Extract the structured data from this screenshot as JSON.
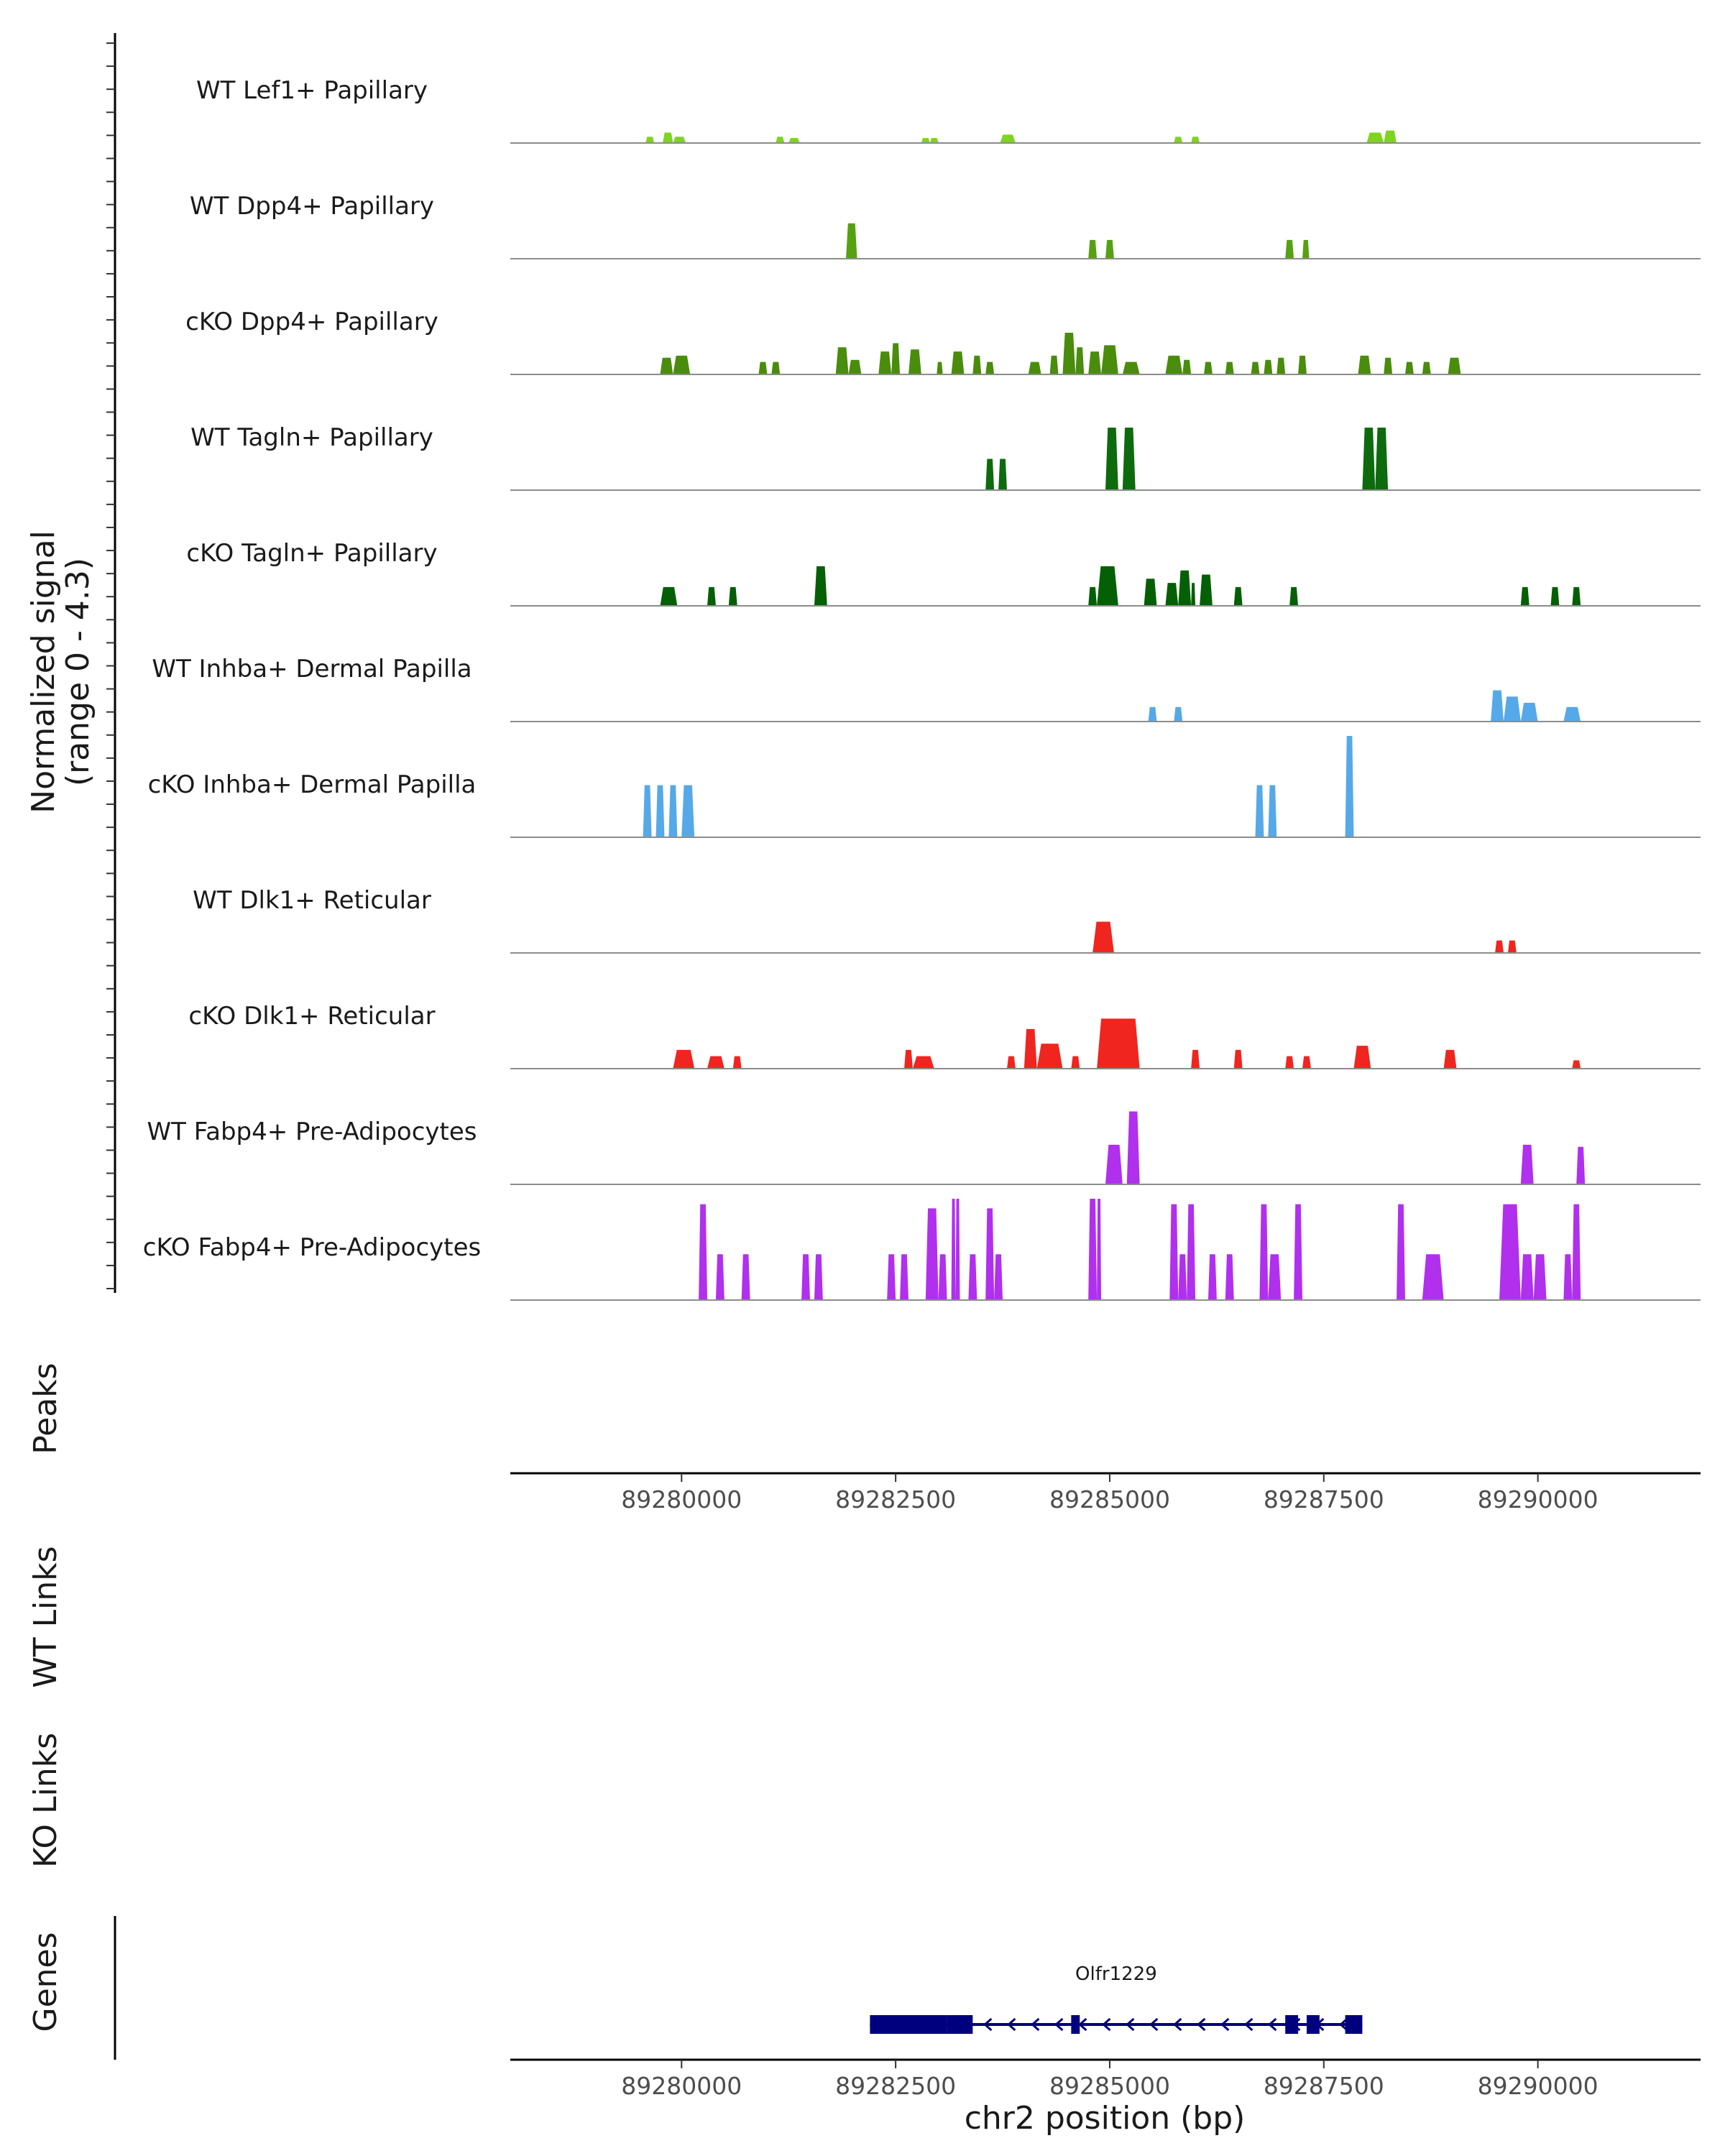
{
  "chart_data": {
    "type": "area",
    "title": "",
    "chromosome": "chr2",
    "xlabel": "chr2 position (bp)",
    "xlim": [
      89278000,
      89291900
    ],
    "x_ticks": [
      89280000,
      89282500,
      89285000,
      89287500,
      89290000
    ],
    "x_tick_labels": [
      "89280000",
      "89282500",
      "89285000",
      "89287500",
      "89290000"
    ],
    "ylabel": "Normalized signal",
    "ylabel_range": "(range 0 - 4.3)",
    "ylim": [
      0,
      4.3
    ],
    "section_labels": {
      "peaks": "Peaks",
      "wt_links": "WT Links",
      "ko_links": "KO Links",
      "genes": "Genes"
    },
    "tracks": [
      {
        "name": "WT Lef1+ Papillary",
        "color": "#7fd321",
        "peaks": [
          [
            89279580,
            89279680,
            0.15
          ],
          [
            89279780,
            89279900,
            0.25
          ],
          [
            89279900,
            89280050,
            0.15
          ],
          [
            89281100,
            89281200,
            0.15
          ],
          [
            89281250,
            89281380,
            0.12
          ],
          [
            89282800,
            89282900,
            0.12
          ],
          [
            89282900,
            89283000,
            0.12
          ],
          [
            89283720,
            89283900,
            0.2
          ],
          [
            89285750,
            89285850,
            0.15
          ],
          [
            89285950,
            89286050,
            0.15
          ],
          [
            89288000,
            89288200,
            0.25
          ],
          [
            89288200,
            89288350,
            0.3
          ]
        ]
      },
      {
        "name": "WT Dpp4+ Papillary",
        "color": "#56a112",
        "peaks": [
          [
            89281920,
            89282050,
            0.85
          ],
          [
            89284750,
            89284850,
            0.45
          ],
          [
            89284950,
            89285050,
            0.45
          ],
          [
            89287050,
            89287150,
            0.45
          ],
          [
            89287250,
            89287330,
            0.45
          ]
        ]
      },
      {
        "name": "cKO Dpp4+ Papillary",
        "color": "#4a8c0c",
        "peaks": [
          [
            89279750,
            89279900,
            0.4
          ],
          [
            89279900,
            89280100,
            0.45
          ],
          [
            89280900,
            89281000,
            0.3
          ],
          [
            89281050,
            89281150,
            0.3
          ],
          [
            89281800,
            89281950,
            0.65
          ],
          [
            89281950,
            89282100,
            0.35
          ],
          [
            89282300,
            89282450,
            0.55
          ],
          [
            89282450,
            89282550,
            0.75
          ],
          [
            89282650,
            89282800,
            0.6
          ],
          [
            89282980,
            89283050,
            0.3
          ],
          [
            89283150,
            89283300,
            0.55
          ],
          [
            89283400,
            89283500,
            0.45
          ],
          [
            89283550,
            89283650,
            0.3
          ],
          [
            89284050,
            89284200,
            0.3
          ],
          [
            89284300,
            89284400,
            0.45
          ],
          [
            89284450,
            89284600,
            1.0
          ],
          [
            89284600,
            89284700,
            0.65
          ],
          [
            89284750,
            89284900,
            0.55
          ],
          [
            89284900,
            89285100,
            0.7
          ],
          [
            89285150,
            89285350,
            0.3
          ],
          [
            89285650,
            89285850,
            0.45
          ],
          [
            89285850,
            89285950,
            0.35
          ],
          [
            89286100,
            89286200,
            0.3
          ],
          [
            89286350,
            89286450,
            0.3
          ],
          [
            89286650,
            89286750,
            0.3
          ],
          [
            89286800,
            89286900,
            0.35
          ],
          [
            89286950,
            89287050,
            0.4
          ],
          [
            89287200,
            89287300,
            0.45
          ],
          [
            89287900,
            89288050,
            0.45
          ],
          [
            89288200,
            89288300,
            0.4
          ],
          [
            89288450,
            89288550,
            0.3
          ],
          [
            89288650,
            89288750,
            0.3
          ],
          [
            89288950,
            89289100,
            0.4
          ]
        ]
      },
      {
        "name": "WT Tagln+ Papillary",
        "color": "#0d6b0d",
        "peaks": [
          [
            89283550,
            89283650,
            0.75
          ],
          [
            89283700,
            89283800,
            0.75
          ],
          [
            89284950,
            89285100,
            1.5
          ],
          [
            89285150,
            89285300,
            1.5
          ],
          [
            89287950,
            89288100,
            1.5
          ],
          [
            89288100,
            89288250,
            1.5
          ]
        ]
      },
      {
        "name": "cKO Tagln+ Papillary",
        "color": "#056005",
        "peaks": [
          [
            89279750,
            89279950,
            0.45
          ],
          [
            89280300,
            89280400,
            0.45
          ],
          [
            89280550,
            89280650,
            0.45
          ],
          [
            89281550,
            89281700,
            0.95
          ],
          [
            89284750,
            89284850,
            0.45
          ],
          [
            89284850,
            89285100,
            0.95
          ],
          [
            89285400,
            89285550,
            0.65
          ],
          [
            89285650,
            89285800,
            0.55
          ],
          [
            89285800,
            89285950,
            0.85
          ],
          [
            89285950,
            89286000,
            0.55
          ],
          [
            89286050,
            89286200,
            0.75
          ],
          [
            89286450,
            89286550,
            0.45
          ],
          [
            89287100,
            89287200,
            0.45
          ],
          [
            89289800,
            89289900,
            0.45
          ],
          [
            89290150,
            89290250,
            0.45
          ],
          [
            89290400,
            89290500,
            0.45
          ]
        ]
      },
      {
        "name": "WT Inhba+ Dermal Papilla",
        "color": "#56a9e8",
        "peaks": [
          [
            89285450,
            89285550,
            0.35
          ],
          [
            89285750,
            89285850,
            0.35
          ],
          [
            89289450,
            89289600,
            0.75
          ],
          [
            89289600,
            89289800,
            0.6
          ],
          [
            89289800,
            89290000,
            0.45
          ],
          [
            89290300,
            89290500,
            0.35
          ]
        ]
      },
      {
        "name": "cKO Inhba+ Dermal Papilla",
        "color": "#56a9e8",
        "peaks": [
          [
            89279550,
            89279650,
            1.25
          ],
          [
            89279700,
            89279800,
            1.25
          ],
          [
            89279850,
            89279950,
            1.25
          ],
          [
            89280000,
            89280150,
            1.25
          ],
          [
            89286700,
            89286800,
            1.25
          ],
          [
            89286850,
            89286950,
            1.25
          ],
          [
            89287750,
            89287850,
            2.6
          ]
        ]
      },
      {
        "name": "WT Dlk1+ Reticular",
        "color": "#f0251f",
        "peaks": [
          [
            89284800,
            89285050,
            0.75
          ],
          [
            89289500,
            89289600,
            0.3
          ],
          [
            89289650,
            89289750,
            0.3
          ]
        ]
      },
      {
        "name": "cKO Dlk1+ Reticular",
        "color": "#f0251f",
        "peaks": [
          [
            89279900,
            89280150,
            0.45
          ],
          [
            89280300,
            89280500,
            0.3
          ],
          [
            89280600,
            89280700,
            0.3
          ],
          [
            89282600,
            89282700,
            0.45
          ],
          [
            89282700,
            89282950,
            0.3
          ],
          [
            89283800,
            89283900,
            0.3
          ],
          [
            89284000,
            89284150,
            0.95
          ],
          [
            89284150,
            89284450,
            0.6
          ],
          [
            89284550,
            89284650,
            0.3
          ],
          [
            89284850,
            89285350,
            1.2
          ],
          [
            89285950,
            89286050,
            0.45
          ],
          [
            89286450,
            89286550,
            0.45
          ],
          [
            89287050,
            89287150,
            0.3
          ],
          [
            89287250,
            89287350,
            0.3
          ],
          [
            89287850,
            89288050,
            0.55
          ],
          [
            89288900,
            89289050,
            0.45
          ],
          [
            89290400,
            89290500,
            0.2
          ]
        ]
      },
      {
        "name": "WT Fabp4+ Pre-Adipocytes",
        "color": "#b030ee",
        "peaks": [
          [
            89284950,
            89285150,
            0.95
          ],
          [
            89285200,
            89285350,
            1.75
          ],
          [
            89289800,
            89289950,
            0.95
          ],
          [
            89290450,
            89290550,
            0.9
          ]
        ]
      },
      {
        "name": "cKO Fabp4+ Pre-Adipocytes",
        "color": "#b030ee",
        "peaks": [
          [
            89280200,
            89280300,
            2.3
          ],
          [
            89280400,
            89280500,
            1.1
          ],
          [
            89280700,
            89280800,
            1.1
          ],
          [
            89281400,
            89281500,
            1.1
          ],
          [
            89281550,
            89281650,
            1.1
          ],
          [
            89282400,
            89282500,
            1.1
          ],
          [
            89282550,
            89282650,
            1.1
          ],
          [
            89282850,
            89283000,
            2.2
          ],
          [
            89283000,
            89283100,
            1.1
          ],
          [
            89283150,
            89283200,
            2.5
          ],
          [
            89283200,
            89283250,
            3.4
          ],
          [
            89283350,
            89283450,
            1.1
          ],
          [
            89283550,
            89283650,
            2.2
          ],
          [
            89283650,
            89283750,
            1.1
          ],
          [
            89284750,
            89284850,
            3.4
          ],
          [
            89284850,
            89284900,
            3.4
          ],
          [
            89285700,
            89285800,
            2.3
          ],
          [
            89285800,
            89285900,
            1.1
          ],
          [
            89285900,
            89286000,
            2.3
          ],
          [
            89286150,
            89286250,
            1.1
          ],
          [
            89286350,
            89286450,
            1.1
          ],
          [
            89286750,
            89286850,
            2.3
          ],
          [
            89286850,
            89287000,
            1.1
          ],
          [
            89287150,
            89287250,
            2.3
          ],
          [
            89288350,
            89288450,
            2.3
          ],
          [
            89288650,
            89288900,
            1.1
          ],
          [
            89289550,
            89289800,
            2.3
          ],
          [
            89289800,
            89289950,
            1.1
          ],
          [
            89289950,
            89290100,
            1.1
          ],
          [
            89290300,
            89290400,
            1.1
          ],
          [
            89290400,
            89290500,
            2.3
          ]
        ]
      }
    ],
    "gene": {
      "name": "Olfr1229",
      "strand": "-",
      "color": "#00007f",
      "start": 89282200,
      "end": 89287950,
      "exons": [
        [
          89282200,
          89283100
        ],
        [
          89283100,
          89283400
        ],
        [
          89284550,
          89284650
        ],
        [
          89287050,
          89287200
        ],
        [
          89287300,
          89287450
        ],
        [
          89287750,
          89287950
        ]
      ]
    }
  }
}
